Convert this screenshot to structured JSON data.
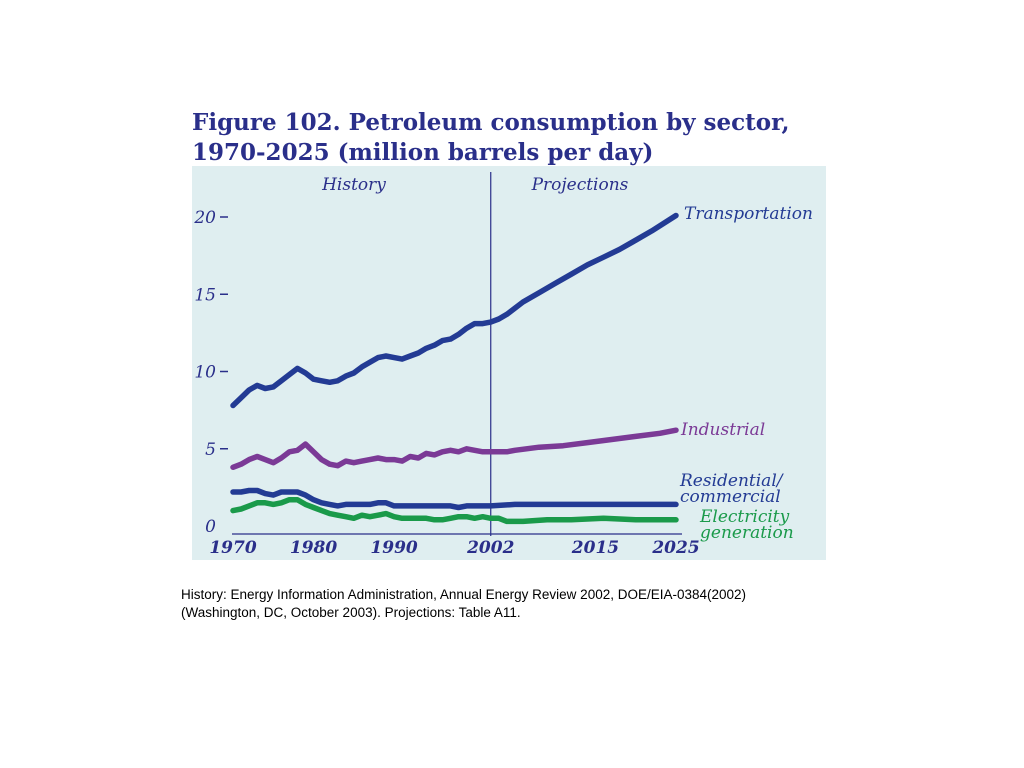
{
  "figure": {
    "title_line1": "Figure 102. Petroleum consumption by sector,",
    "title_line2": "1970-2025 (million barrels per day)",
    "source_line1": "History: Energy Information Administration, Annual Energy Review 2002, DOE/EIA-0384(2002)",
    "source_line2": "(Washington, DC, October 2003). Projections: Table A11."
  },
  "colors": {
    "plot_background": "#dfeef0",
    "axis_text": "#2a2f8a",
    "divider": "#2a2f8a",
    "transportation": "#233b94",
    "industrial": "#7b3a96",
    "residential": "#233b94",
    "electricity": "#1a9a4a"
  },
  "chart_data": {
    "type": "line",
    "title": "Figure 102. Petroleum consumption by sector, 1970-2025 (million barrels per day)",
    "xlabel": "",
    "ylabel": "",
    "xlim": [
      1970,
      2025
    ],
    "ylim": [
      0,
      20
    ],
    "grid": false,
    "legend": "inline labels at right end of each line",
    "x_ticks": [
      1970,
      1980,
      1990,
      2002,
      2015,
      2025
    ],
    "x_tick_labels": [
      "1970",
      "1980",
      "1990",
      "2002",
      "2015",
      "2025"
    ],
    "y_ticks": [
      0,
      5,
      10,
      15,
      20
    ],
    "y_tick_labels": [
      "0",
      "5",
      "10",
      "15",
      "20"
    ],
    "divider_x": 2002,
    "region_labels": {
      "history": "History",
      "projections": "Projections"
    },
    "series": [
      {
        "name": "Transportation",
        "label_lines": [
          "Transportation"
        ],
        "color_key": "transportation",
        "points": [
          [
            1970,
            7.8
          ],
          [
            1971,
            8.3
          ],
          [
            1972,
            8.8
          ],
          [
            1973,
            9.1
          ],
          [
            1974,
            8.9
          ],
          [
            1975,
            9.0
          ],
          [
            1976,
            9.4
          ],
          [
            1977,
            9.8
          ],
          [
            1978,
            10.2
          ],
          [
            1979,
            9.9
          ],
          [
            1980,
            9.5
          ],
          [
            1981,
            9.4
          ],
          [
            1982,
            9.3
          ],
          [
            1983,
            9.4
          ],
          [
            1984,
            9.7
          ],
          [
            1985,
            9.9
          ],
          [
            1986,
            10.3
          ],
          [
            1987,
            10.6
          ],
          [
            1988,
            10.9
          ],
          [
            1989,
            11.0
          ],
          [
            1990,
            10.9
          ],
          [
            1991,
            10.8
          ],
          [
            1992,
            11.0
          ],
          [
            1993,
            11.2
          ],
          [
            1994,
            11.5
          ],
          [
            1995,
            11.7
          ],
          [
            1996,
            12.0
          ],
          [
            1997,
            12.1
          ],
          [
            1998,
            12.4
          ],
          [
            1999,
            12.8
          ],
          [
            2000,
            13.1
          ],
          [
            2001,
            13.1
          ],
          [
            2002,
            13.2
          ],
          [
            2003,
            13.4
          ],
          [
            2004,
            13.7
          ],
          [
            2005,
            14.1
          ],
          [
            2006,
            14.5
          ],
          [
            2008,
            15.1
          ],
          [
            2010,
            15.7
          ],
          [
            2012,
            16.3
          ],
          [
            2014,
            16.9
          ],
          [
            2016,
            17.4
          ],
          [
            2018,
            17.9
          ],
          [
            2020,
            18.5
          ],
          [
            2022,
            19.1
          ],
          [
            2025,
            20.1
          ]
        ]
      },
      {
        "name": "Industrial",
        "label_lines": [
          "Industrial"
        ],
        "color_key": "industrial",
        "points": [
          [
            1970,
            3.8
          ],
          [
            1971,
            4.0
          ],
          [
            1972,
            4.3
          ],
          [
            1973,
            4.5
          ],
          [
            1974,
            4.3
          ],
          [
            1975,
            4.1
          ],
          [
            1976,
            4.4
          ],
          [
            1977,
            4.8
          ],
          [
            1978,
            4.9
          ],
          [
            1979,
            5.3
          ],
          [
            1980,
            4.8
          ],
          [
            1981,
            4.3
          ],
          [
            1982,
            4.0
          ],
          [
            1983,
            3.9
          ],
          [
            1984,
            4.2
          ],
          [
            1985,
            4.1
          ],
          [
            1986,
            4.2
          ],
          [
            1987,
            4.3
          ],
          [
            1988,
            4.4
          ],
          [
            1989,
            4.3
          ],
          [
            1990,
            4.3
          ],
          [
            1991,
            4.2
          ],
          [
            1992,
            4.5
          ],
          [
            1993,
            4.4
          ],
          [
            1994,
            4.7
          ],
          [
            1995,
            4.6
          ],
          [
            1996,
            4.8
          ],
          [
            1997,
            4.9
          ],
          [
            1998,
            4.8
          ],
          [
            1999,
            5.0
          ],
          [
            2000,
            4.9
          ],
          [
            2001,
            4.8
          ],
          [
            2002,
            4.8
          ],
          [
            2003,
            4.8
          ],
          [
            2004,
            4.8
          ],
          [
            2005,
            4.9
          ],
          [
            2008,
            5.1
          ],
          [
            2011,
            5.2
          ],
          [
            2014,
            5.4
          ],
          [
            2017,
            5.6
          ],
          [
            2020,
            5.8
          ],
          [
            2023,
            6.0
          ],
          [
            2025,
            6.2
          ]
        ]
      },
      {
        "name": "Residential/ commercial",
        "label_lines": [
          "Residential/",
          "commercial"
        ],
        "color_key": "residential",
        "points": [
          [
            1970,
            2.2
          ],
          [
            1971,
            2.2
          ],
          [
            1972,
            2.3
          ],
          [
            1973,
            2.3
          ],
          [
            1974,
            2.1
          ],
          [
            1975,
            2.0
          ],
          [
            1976,
            2.2
          ],
          [
            1977,
            2.2
          ],
          [
            1978,
            2.2
          ],
          [
            1979,
            2.0
          ],
          [
            1980,
            1.7
          ],
          [
            1981,
            1.5
          ],
          [
            1982,
            1.4
          ],
          [
            1983,
            1.3
          ],
          [
            1984,
            1.4
          ],
          [
            1985,
            1.4
          ],
          [
            1986,
            1.4
          ],
          [
            1987,
            1.4
          ],
          [
            1988,
            1.5
          ],
          [
            1989,
            1.5
          ],
          [
            1990,
            1.3
          ],
          [
            1991,
            1.3
          ],
          [
            1992,
            1.3
          ],
          [
            1993,
            1.3
          ],
          [
            1994,
            1.3
          ],
          [
            1995,
            1.3
          ],
          [
            1996,
            1.3
          ],
          [
            1997,
            1.3
          ],
          [
            1998,
            1.2
          ],
          [
            1999,
            1.3
          ],
          [
            2000,
            1.3
          ],
          [
            2001,
            1.3
          ],
          [
            2002,
            1.3
          ],
          [
            2005,
            1.4
          ],
          [
            2010,
            1.4
          ],
          [
            2015,
            1.4
          ],
          [
            2020,
            1.4
          ],
          [
            2025,
            1.4
          ]
        ]
      },
      {
        "name": "Electricity generation",
        "label_lines": [
          "Electricity",
          "generation"
        ],
        "color_key": "electricity",
        "points": [
          [
            1970,
            1.0
          ],
          [
            1971,
            1.1
          ],
          [
            1972,
            1.3
          ],
          [
            1973,
            1.5
          ],
          [
            1974,
            1.5
          ],
          [
            1975,
            1.4
          ],
          [
            1976,
            1.5
          ],
          [
            1977,
            1.7
          ],
          [
            1978,
            1.7
          ],
          [
            1979,
            1.4
          ],
          [
            1980,
            1.2
          ],
          [
            1981,
            1.0
          ],
          [
            1982,
            0.8
          ],
          [
            1983,
            0.7
          ],
          [
            1984,
            0.6
          ],
          [
            1985,
            0.5
          ],
          [
            1986,
            0.7
          ],
          [
            1987,
            0.6
          ],
          [
            1988,
            0.7
          ],
          [
            1989,
            0.8
          ],
          [
            1990,
            0.6
          ],
          [
            1991,
            0.5
          ],
          [
            1992,
            0.5
          ],
          [
            1993,
            0.5
          ],
          [
            1994,
            0.5
          ],
          [
            1995,
            0.4
          ],
          [
            1996,
            0.4
          ],
          [
            1997,
            0.5
          ],
          [
            1998,
            0.6
          ],
          [
            1999,
            0.6
          ],
          [
            2000,
            0.5
          ],
          [
            2001,
            0.6
          ],
          [
            2002,
            0.5
          ],
          [
            2003,
            0.5
          ],
          [
            2004,
            0.3
          ],
          [
            2006,
            0.3
          ],
          [
            2009,
            0.4
          ],
          [
            2012,
            0.4
          ],
          [
            2016,
            0.5
          ],
          [
            2020,
            0.4
          ],
          [
            2025,
            0.4
          ]
        ]
      }
    ]
  }
}
